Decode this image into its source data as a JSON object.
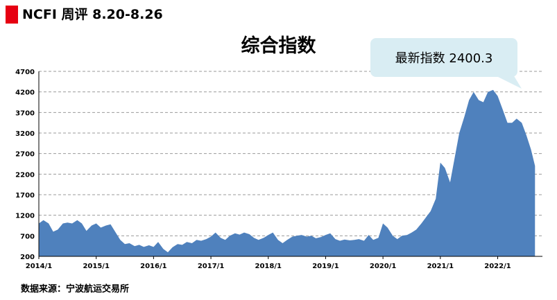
{
  "header": {
    "title": "NCFI 周评 8.20-8.26"
  },
  "source_text": "数据来源：宁波航运交易所",
  "callout": {
    "text": "最新指数 2400.3"
  },
  "colors": {
    "area": "#4f81bd",
    "header_bar": "#e60012",
    "callout_bg": "#d9edf3"
  },
  "chart_data": {
    "type": "area",
    "title": "综合指数",
    "xlabel": "",
    "ylabel": "",
    "ylim": [
      200,
      4700
    ],
    "yticks": [
      "4700",
      "4200",
      "3700",
      "3200",
      "2700",
      "2200",
      "1700",
      "1200",
      "700",
      "200"
    ],
    "xticks": [
      "2014/1",
      "2015/1",
      "2016/1",
      "2017/1",
      "2018/1",
      "2019/1",
      "2020/1",
      "2021/1",
      "2022/1"
    ],
    "grid": true,
    "x": [
      2014.0,
      2014.08,
      2014.17,
      2014.25,
      2014.33,
      2014.42,
      2014.5,
      2014.58,
      2014.67,
      2014.75,
      2014.83,
      2014.92,
      2015.0,
      2015.08,
      2015.17,
      2015.25,
      2015.33,
      2015.42,
      2015.5,
      2015.58,
      2015.67,
      2015.75,
      2015.83,
      2015.92,
      2016.0,
      2016.08,
      2016.17,
      2016.25,
      2016.33,
      2016.42,
      2016.5,
      2016.58,
      2016.67,
      2016.75,
      2016.83,
      2016.92,
      2017.0,
      2017.08,
      2017.17,
      2017.25,
      2017.33,
      2017.42,
      2017.5,
      2017.58,
      2017.67,
      2017.75,
      2017.83,
      2017.92,
      2018.0,
      2018.08,
      2018.17,
      2018.25,
      2018.33,
      2018.42,
      2018.5,
      2018.58,
      2018.67,
      2018.75,
      2018.83,
      2018.92,
      2019.0,
      2019.08,
      2019.17,
      2019.25,
      2019.33,
      2019.42,
      2019.5,
      2019.58,
      2019.67,
      2019.75,
      2019.83,
      2019.92,
      2020.0,
      2020.08,
      2020.17,
      2020.25,
      2020.33,
      2020.42,
      2020.5,
      2020.58,
      2020.67,
      2020.75,
      2020.83,
      2020.92,
      2021.0,
      2021.08,
      2021.17,
      2021.25,
      2021.33,
      2021.42,
      2021.5,
      2021.58,
      2021.67,
      2021.75,
      2021.83,
      2021.92,
      2022.0,
      2022.08,
      2022.17,
      2022.25,
      2022.33,
      2022.42,
      2022.5,
      2022.58,
      2022.65
    ],
    "values": [
      1000,
      1080,
      1000,
      800,
      850,
      1000,
      1020,
      1000,
      1080,
      1000,
      820,
      950,
      1000,
      900,
      950,
      980,
      800,
      600,
      500,
      520,
      450,
      480,
      430,
      470,
      430,
      550,
      380,
      300,
      420,
      500,
      480,
      550,
      520,
      600,
      580,
      620,
      680,
      780,
      650,
      600,
      700,
      760,
      730,
      780,
      740,
      650,
      600,
      650,
      720,
      780,
      600,
      520,
      600,
      680,
      700,
      720,
      680,
      700,
      640,
      670,
      720,
      760,
      620,
      580,
      610,
      590,
      600,
      620,
      580,
      720,
      600,
      650,
      1000,
      900,
      700,
      620,
      700,
      720,
      780,
      850,
      1000,
      1150,
      1300,
      1600,
      2480,
      2350,
      2000,
      2600,
      3200,
      3600,
      4000,
      4200,
      4000,
      3950,
      4200,
      4250,
      4100,
      3800,
      3450,
      3450,
      3550,
      3450,
      3150,
      2800,
      2400
    ]
  }
}
